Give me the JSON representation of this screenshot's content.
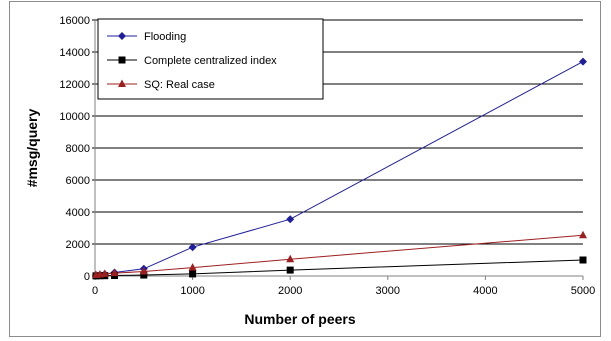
{
  "chart_data": {
    "type": "line",
    "title": "",
    "xlabel": "Number of peers",
    "ylabel": "#msg/query",
    "xlim": [
      0,
      5000
    ],
    "ylim": [
      0,
      16000
    ],
    "x_ticks": [
      0,
      1000,
      2000,
      3000,
      4000,
      5000
    ],
    "y_ticks": [
      0,
      2000,
      4000,
      6000,
      8000,
      10000,
      12000,
      14000,
      16000
    ],
    "grid": "horizontal",
    "legend_position": "top-left",
    "series": [
      {
        "name": "Flooding",
        "color": "#1f1f9e",
        "marker": "diamond",
        "x": [
          10,
          50,
          100,
          200,
          500,
          1000,
          2000,
          5000
        ],
        "y": [
          20,
          60,
          120,
          220,
          450,
          1800,
          3550,
          13400
        ]
      },
      {
        "name": "Complete centralized index",
        "color": "#000000",
        "marker": "square",
        "x": [
          10,
          50,
          100,
          200,
          500,
          1000,
          2000,
          5000
        ],
        "y": [
          10,
          15,
          20,
          30,
          60,
          130,
          370,
          1000
        ]
      },
      {
        "name": "SQ: Real case",
        "color": "#9e1f1f",
        "marker": "triangle",
        "x": [
          10,
          50,
          100,
          200,
          500,
          1000,
          2000,
          5000
        ],
        "y": [
          60,
          90,
          130,
          180,
          280,
          520,
          1050,
          2550
        ]
      }
    ]
  }
}
